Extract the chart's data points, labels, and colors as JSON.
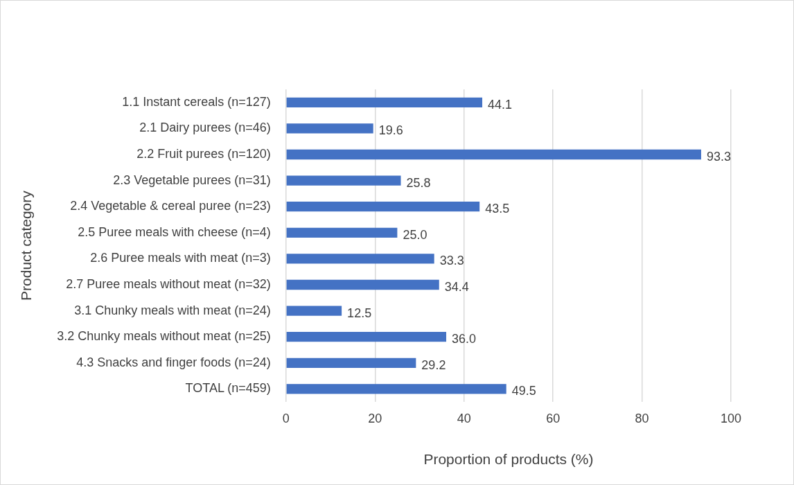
{
  "chart_data": {
    "type": "bar",
    "orientation": "horizontal",
    "xlabel": "Proportion of products (%)",
    "ylabel": "Product category",
    "categories": [
      "1.1 Instant cereals (n=127)",
      "2.1 Dairy purees (n=46)",
      "2.2 Fruit purees (n=120)",
      "2.3 Vegetable purees (n=31)",
      "2.4 Vegetable & cereal puree (n=23)",
      "2.5 Puree meals with cheese (n=4)",
      "2.6 Puree meals with meat (n=3)",
      "2.7 Puree meals without meat (n=32)",
      "3.1 Chunky meals with meat (n=24)",
      "3.2 Chunky meals without meat (n=25)",
      "4.3 Snacks and finger foods (n=24)",
      "TOTAL (n=459)"
    ],
    "values": [
      44.1,
      19.6,
      93.3,
      25.8,
      43.5,
      25.0,
      33.3,
      34.4,
      12.5,
      36.0,
      29.2,
      49.5
    ],
    "value_labels": [
      "44.1",
      "19.6",
      "93.3",
      "25.8",
      "43.5",
      "25.0",
      "33.3",
      "34.4",
      "12.5",
      "36.0",
      "29.2",
      "49.5"
    ],
    "color": "#4472c4",
    "xlim": [
      0,
      100
    ],
    "xticks": [
      0,
      20,
      40,
      60,
      80,
      100
    ],
    "grid": "x",
    "legend": false
  }
}
